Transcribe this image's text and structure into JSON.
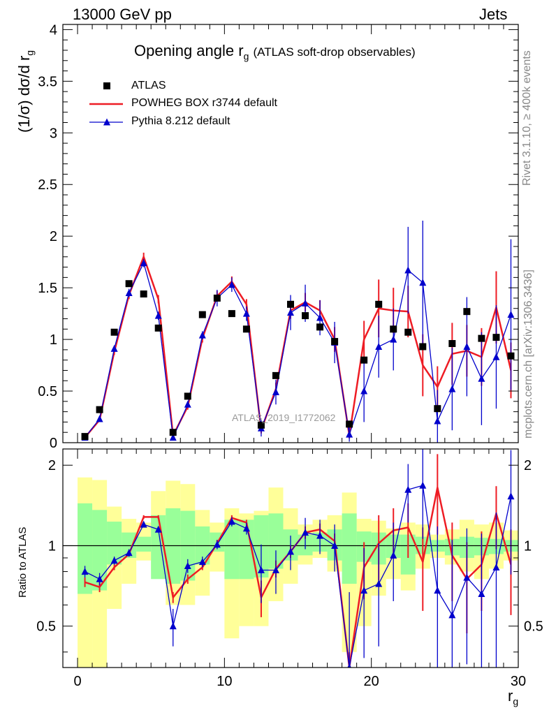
{
  "header": {
    "left": "13000 GeV pp",
    "right": "Jets"
  },
  "side_labels": {
    "rivet": "Rivet 3.1.10, ≥ 400k events",
    "mcplots": "mcplots.cern.ch [arXiv:1306.3436]"
  },
  "chart_data": {
    "type": "scatter",
    "title": "Opening angle r_g (ATLAS soft-drop observables)",
    "title_main": "Opening angle r",
    "title_sub": "g",
    "title_rest": "(ATLAS soft-drop observables)",
    "watermark": "ATLAS_2019_I1772062",
    "xlabel": "r",
    "xlabel_sub": "g",
    "ylabel": "(1/σ) dσ/d r",
    "ylabel_sub": "g",
    "ratio_ylabel": "Ratio to ATLAS",
    "xlim": [
      -1,
      30
    ],
    "ylim": [
      0,
      4.05
    ],
    "ratio_ylim": [
      0.35,
      2.3
    ],
    "x_ticks": [
      0,
      10,
      20,
      30
    ],
    "y_ticks": [
      0,
      0.5,
      1,
      1.5,
      2,
      2.5,
      3,
      3.5,
      4
    ],
    "y_tick_labels": [
      "0",
      "0.5",
      "1",
      "1.5",
      "2",
      "2.5",
      "3",
      "3.5",
      "4"
    ],
    "ratio_ticks": [
      0.5,
      1,
      2
    ],
    "ratio_tick_labels": [
      "0.5",
      "1",
      "2"
    ],
    "x": [
      0.5,
      1.5,
      2.5,
      3.5,
      4.5,
      5.5,
      6.5,
      7.5,
      8.5,
      9.5,
      10.5,
      11.5,
      12.5,
      13.5,
      14.5,
      15.5,
      16.5,
      17.5,
      18.5,
      19.5,
      20.5,
      21.5,
      22.5,
      23.5,
      24.5,
      25.5,
      26.5,
      27.5,
      28.5,
      29.5
    ],
    "legend": [
      "ATLAS",
      "POWHEG BOX r3744 default",
      "Pythia 8.212 default"
    ],
    "series": [
      {
        "name": "ATLAS",
        "color": "#000000",
        "values": [
          0.06,
          0.32,
          1.07,
          1.54,
          1.44,
          1.11,
          0.1,
          0.45,
          1.24,
          1.4,
          1.25,
          1.1,
          0.17,
          0.65,
          1.34,
          1.23,
          1.12,
          0.98,
          0.18,
          0.8,
          1.34,
          1.1,
          1.07,
          0.93,
          0.33,
          0.96,
          1.27,
          1.01,
          1.02,
          0.84
        ]
      },
      {
        "name": "POWHEG BOX r3744 default",
        "color": "#ee1c24",
        "values": [
          0.05,
          0.22,
          0.88,
          1.43,
          1.8,
          1.39,
          0.07,
          0.35,
          1.01,
          1.42,
          1.56,
          1.34,
          0.12,
          0.52,
          1.28,
          1.36,
          1.28,
          1.0,
          0.07,
          1.0,
          1.3,
          1.28,
          1.27,
          0.75,
          0.54,
          0.86,
          0.89,
          0.83,
          1.31,
          0.7
        ],
        "errors": [
          0.01,
          0.02,
          0.03,
          0.04,
          0.04,
          0.04,
          0.01,
          0.03,
          0.04,
          0.05,
          0.05,
          0.05,
          0.03,
          0.06,
          0.08,
          0.09,
          0.1,
          0.12,
          0.03,
          0.18,
          0.28,
          0.22,
          0.25,
          0.3,
          0.2,
          0.3,
          0.25,
          0.28,
          0.35,
          0.27
        ]
      },
      {
        "name": "Pythia 8.212 default",
        "color": "#0000cc",
        "values": [
          0.05,
          0.23,
          0.91,
          1.45,
          1.74,
          1.23,
          0.05,
          0.37,
          1.04,
          1.4,
          1.53,
          1.25,
          0.14,
          0.49,
          1.26,
          1.35,
          1.21,
          0.97,
          0.08,
          0.5,
          0.93,
          1.0,
          1.67,
          1.55,
          0.21,
          0.52,
          0.93,
          0.62,
          0.83,
          1.24
        ],
        "errors": [
          0.01,
          0.02,
          0.03,
          0.04,
          0.04,
          0.04,
          0.01,
          0.03,
          0.04,
          0.08,
          0.07,
          0.07,
          0.08,
          0.12,
          0.17,
          0.18,
          0.17,
          0.2,
          0.07,
          0.3,
          0.3,
          0.3,
          0.42,
          0.6,
          0.3,
          0.4,
          0.48,
          0.45,
          0.5,
          0.73
        ]
      }
    ],
    "ratio": {
      "powheg": [
        0.73,
        0.7,
        0.83,
        0.93,
        1.28,
        1.28,
        0.64,
        0.75,
        0.83,
        1.02,
        1.27,
        1.22,
        0.64,
        0.82,
        0.95,
        1.12,
        1.15,
        1.04,
        0.2,
        0.83,
        1.02,
        1.14,
        1.17,
        0.87,
        1.65,
        0.92,
        0.75,
        0.85,
        1.32,
        0.85
      ],
      "powheg_err": [
        0.03,
        0.03,
        0.02,
        0.02,
        0.02,
        0.02,
        0.03,
        0.03,
        0.02,
        0.03,
        0.03,
        0.03,
        0.1,
        0.06,
        0.05,
        0.06,
        0.06,
        0.07,
        0.2,
        0.2,
        0.28,
        0.24,
        0.27,
        0.3,
        0.55,
        0.3,
        0.28,
        0.28,
        0.35,
        0.3
      ],
      "pythia": [
        0.8,
        0.75,
        0.88,
        0.94,
        1.2,
        1.15,
        0.5,
        0.84,
        0.87,
        1.01,
        1.23,
        1.16,
        0.81,
        0.81,
        0.95,
        1.12,
        1.09,
        1.0,
        0.32,
        0.68,
        0.72,
        0.92,
        1.62,
        1.68,
        0.68,
        0.55,
        0.76,
        0.66,
        0.83,
        1.53
      ],
      "pythia_err": [
        0.04,
        0.04,
        0.03,
        0.03,
        0.03,
        0.03,
        0.08,
        0.05,
        0.04,
        0.04,
        0.05,
        0.06,
        0.2,
        0.15,
        0.14,
        0.15,
        0.16,
        0.2,
        0.35,
        0.3,
        0.3,
        0.3,
        0.4,
        0.62,
        0.5,
        0.5,
        0.4,
        0.45,
        0.5,
        0.75
      ],
      "band_yellow_low": [
        0.32,
        0.32,
        0.58,
        0.72,
        0.88,
        0.8,
        0.6,
        0.6,
        0.65,
        0.8,
        0.45,
        0.5,
        0.5,
        0.62,
        0.72,
        0.85,
        0.9,
        0.8,
        0.4,
        0.5,
        0.65,
        0.75,
        0.68,
        0.82,
        0.9,
        0.85,
        0.8,
        0.75,
        0.82,
        0.88
      ],
      "band_yellow_high": [
        1.8,
        1.76,
        1.4,
        1.26,
        1.22,
        1.6,
        1.75,
        1.7,
        1.36,
        1.22,
        1.38,
        1.32,
        1.35,
        1.65,
        1.38,
        1.2,
        1.25,
        1.3,
        1.58,
        1.26,
        1.24,
        1.16,
        1.22,
        1.2,
        1.1,
        1.15,
        1.25,
        1.2,
        1.22,
        1.14
      ],
      "band_green_low": [
        0.66,
        0.68,
        0.85,
        0.9,
        0.95,
        0.75,
        0.72,
        0.74,
        0.85,
        0.95,
        0.75,
        0.75,
        0.76,
        0.82,
        0.88,
        0.92,
        0.95,
        0.88,
        0.72,
        0.87,
        0.85,
        0.9,
        0.78,
        0.93,
        0.95,
        0.92,
        0.9,
        0.92,
        0.93,
        0.95
      ],
      "band_green_high": [
        1.44,
        1.36,
        1.23,
        1.12,
        1.08,
        1.3,
        1.38,
        1.35,
        1.18,
        1.12,
        1.25,
        1.25,
        1.3,
        1.32,
        1.15,
        1.1,
        1.12,
        1.15,
        1.32,
        1.13,
        1.12,
        1.1,
        1.1,
        1.08,
        1.05,
        1.06,
        1.08,
        1.07,
        1.06,
        1.05
      ],
      "reference": 1
    }
  }
}
